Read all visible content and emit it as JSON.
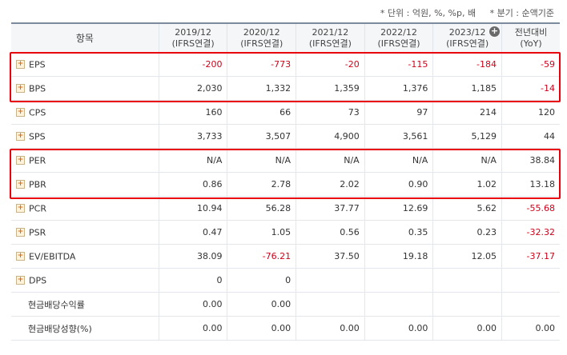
{
  "notes": {
    "unit": "* 단위 : 억원, %, %p, 배",
    "period": "* 분기 : 순액기준"
  },
  "header": {
    "item": "항목",
    "cols": [
      {
        "year": "2019/12",
        "basis": "(IFRS연결)"
      },
      {
        "year": "2020/12",
        "basis": "(IFRS연결)"
      },
      {
        "year": "2021/12",
        "basis": "(IFRS연결)"
      },
      {
        "year": "2022/12",
        "basis": "(IFRS연결)"
      },
      {
        "year": "2023/12",
        "basis": "(IFRS연결)"
      }
    ],
    "yoy_line1": "전년대비",
    "yoy_line2": "(YoY)"
  },
  "rows": [
    {
      "label": "EPS",
      "expand": true,
      "v": [
        "-200",
        "-773",
        "-20",
        "-115",
        "-184",
        "-59"
      ]
    },
    {
      "label": "BPS",
      "expand": true,
      "v": [
        "2,030",
        "1,332",
        "1,359",
        "1,376",
        "1,185",
        "-14"
      ]
    },
    {
      "label": "CPS",
      "expand": true,
      "v": [
        "160",
        "66",
        "73",
        "97",
        "214",
        "120"
      ]
    },
    {
      "label": "SPS",
      "expand": true,
      "v": [
        "3,733",
        "3,507",
        "4,900",
        "3,561",
        "5,129",
        "44"
      ]
    },
    {
      "label": "PER",
      "expand": true,
      "v": [
        "N/A",
        "N/A",
        "N/A",
        "N/A",
        "N/A",
        "38.84"
      ]
    },
    {
      "label": "PBR",
      "expand": true,
      "v": [
        "0.86",
        "2.78",
        "2.02",
        "0.90",
        "1.02",
        "13.18"
      ]
    },
    {
      "label": "PCR",
      "expand": true,
      "v": [
        "10.94",
        "56.28",
        "37.77",
        "12.69",
        "5.62",
        "-55.68"
      ]
    },
    {
      "label": "PSR",
      "expand": true,
      "v": [
        "0.47",
        "1.05",
        "0.56",
        "0.35",
        "0.23",
        "-32.32"
      ]
    },
    {
      "label": "EV/EBITDA",
      "expand": true,
      "v": [
        "38.09",
        "-76.21",
        "37.50",
        "19.18",
        "12.05",
        "-37.17"
      ]
    },
    {
      "label": "DPS",
      "expand": true,
      "v": [
        "0",
        "0",
        "",
        "",
        "",
        ""
      ]
    },
    {
      "label": "현금배당수익률",
      "expand": false,
      "v": [
        "0.00",
        "0.00",
        "",
        "",
        "",
        ""
      ]
    },
    {
      "label": "현금배당성향(%)",
      "expand": false,
      "v": [
        "0.00",
        "0.00",
        "0.00",
        "0.00",
        "0.00",
        "0.00"
      ]
    }
  ],
  "colors": {
    "negative": "#d0021b",
    "highlight": "#e8000d",
    "header_bg": "#f4f6f8"
  }
}
